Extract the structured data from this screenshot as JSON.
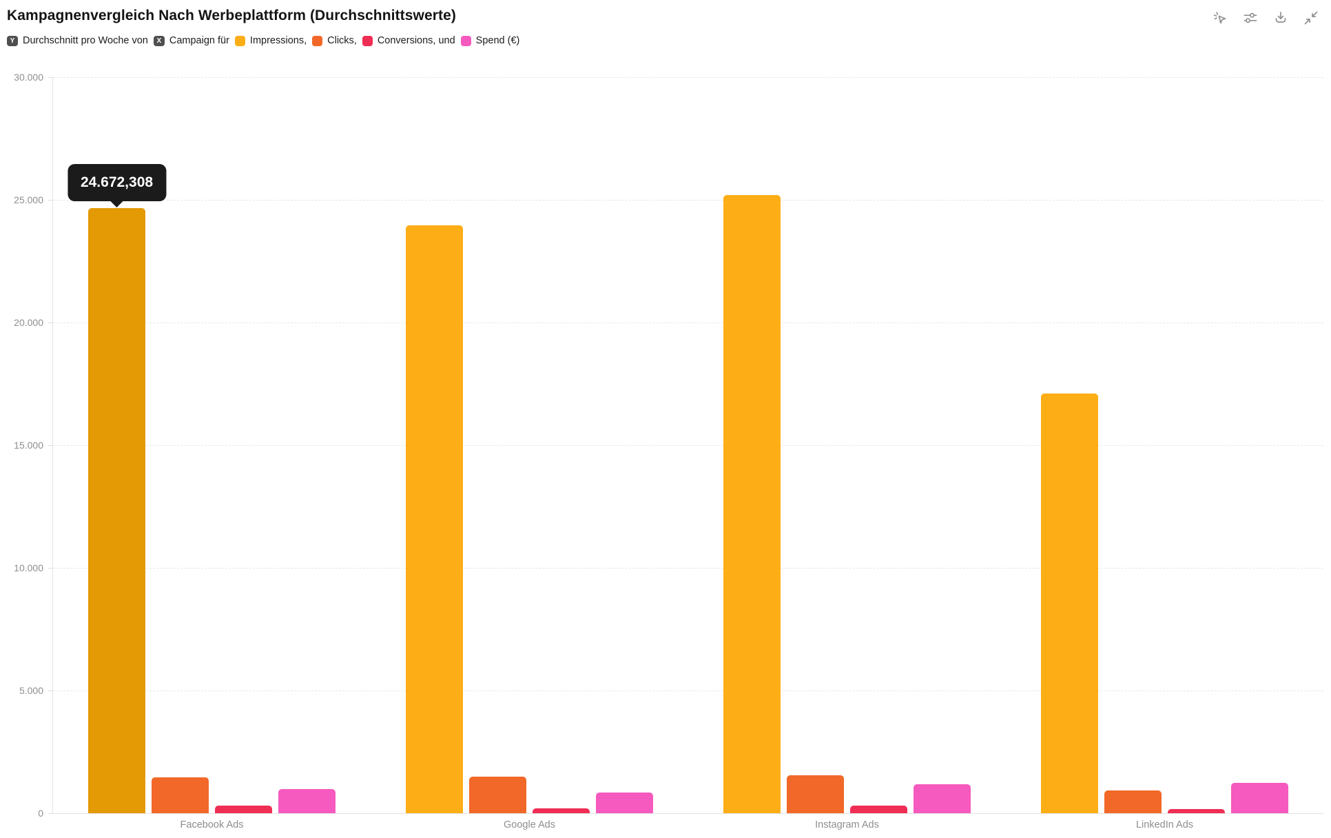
{
  "header": {
    "title": "Kampagnenvergleich Nach Werbeplattform (Durchschnittswerte)"
  },
  "toolbar": {
    "icons": [
      "click-cursor-icon",
      "sliders-icon",
      "download-icon",
      "collapse-icon"
    ]
  },
  "legend": {
    "segments": [
      {
        "badge": "Y",
        "text": "Durchschnitt pro Woche von"
      },
      {
        "badge": "X",
        "text": "Campaign für"
      },
      {
        "swatch": "#FDAE16",
        "text": "Impressions,"
      },
      {
        "swatch": "#F26828",
        "text": "Clicks,"
      },
      {
        "swatch": "#F02D54",
        "text": "Conversions, und"
      },
      {
        "swatch": "#F65ABE",
        "text": "Spend (€)"
      }
    ]
  },
  "chart_data": {
    "type": "bar",
    "title": "Kampagnenvergleich Nach Werbeplattform (Durchschnittswerte)",
    "caption": "Durchschnitt pro Woche von Campaign für Impressions, Clicks, Conversions, und Spend (€)",
    "categories": [
      "Facebook Ads",
      "Google Ads",
      "Instagram Ads",
      "LinkedIn Ads"
    ],
    "series": [
      {
        "name": "Impressions",
        "color": "#FDAE16",
        "values": [
          24672.308,
          23950,
          25200,
          17100
        ]
      },
      {
        "name": "Clicks",
        "color": "#F26828",
        "values": [
          1450,
          1480,
          1540,
          930
        ]
      },
      {
        "name": "Conversions",
        "color": "#F02D54",
        "values": [
          300,
          190,
          310,
          170
        ]
      },
      {
        "name": "Spend (€)",
        "color": "#F65ABE",
        "values": [
          980,
          840,
          1180,
          1240
        ]
      }
    ],
    "xlabel": "Campaign",
    "ylabel": "Durchschnitt pro Woche",
    "ylim": [
      0,
      30000
    ],
    "y_ticks": [
      {
        "value": 30000,
        "label": "30.000"
      },
      {
        "value": 25000,
        "label": "25.000"
      },
      {
        "value": 20000,
        "label": "20.000"
      },
      {
        "value": 15000,
        "label": "15.000"
      },
      {
        "value": 10000,
        "label": "10.000"
      },
      {
        "value": 5000,
        "label": "5.000"
      },
      {
        "value": 0,
        "label": "0"
      }
    ],
    "grid": "horizontal-dashed",
    "legend_position": "top",
    "tooltip": {
      "series": "Impressions",
      "category": "Facebook Ads",
      "label": "24.672,308",
      "highlight_color": "#E39A05"
    }
  }
}
